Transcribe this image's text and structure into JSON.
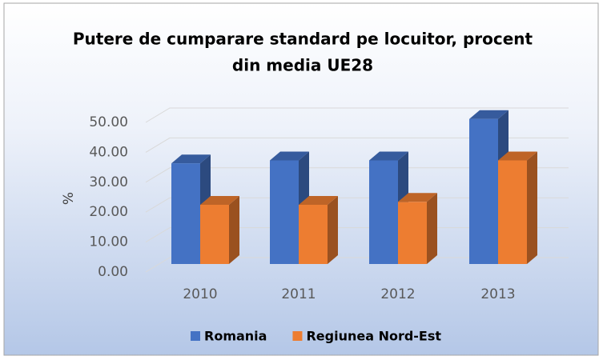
{
  "chart_data": {
    "type": "bar3d",
    "title": "Putere de cumparare standard pe locuitor, procent",
    "subtitle": "din media UE28",
    "y_label": "%",
    "categories": [
      "2010",
      "2011",
      "2012",
      "2013"
    ],
    "series": [
      {
        "name": "Romania",
        "color": "#4472c4",
        "values": [
          34,
          35,
          35,
          49
        ]
      },
      {
        "name": "Regiunea Nord-Est",
        "color": "#ed7d31",
        "values": [
          20,
          20,
          21,
          35
        ]
      }
    ],
    "ylim": [
      0,
      50
    ],
    "yticks": [
      {
        "value": 0,
        "label": "0.00"
      },
      {
        "value": 10,
        "label": "10.00"
      },
      {
        "value": 20,
        "label": "20.00"
      },
      {
        "value": 30,
        "label": "30.00"
      },
      {
        "value": 40,
        "label": "40.00"
      },
      {
        "value": 50,
        "label": "50.00"
      }
    ],
    "grid": true,
    "legend": "bottom"
  }
}
